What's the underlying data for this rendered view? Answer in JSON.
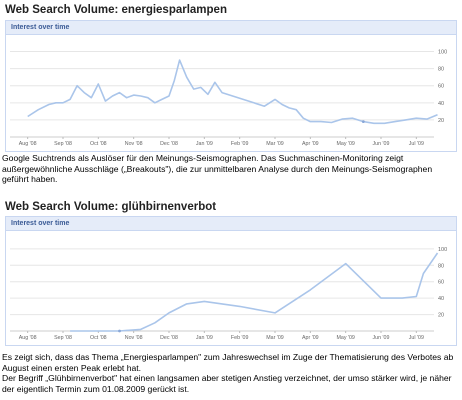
{
  "charts_text": [
    {
      "title": "Web Search Volume: energiesparlampen",
      "panel_label": "Interest over time"
    },
    {
      "title": "Web Search Volume: glühbirnenverbot",
      "panel_label": "Interest over time"
    }
  ],
  "caption1": "Google Suchtrends als Auslöser für den Meinungs-Seismographen. Das Suchmaschinen-Monitoring zeigt außergewöhnliche Ausschläge („Breakouts\"), die zur unmittelbaren Analyse durch den Meinungs-Seismographen geführt haben.",
  "caption2": "Es zeigt sich, dass das Thema „Energiesparlampen\" zum Jahreswechsel im Zuge der Thematisierung des Verbotes ab August einen ersten Peak erlebt hat.",
  "caption3": "Der Begriff „Glühbirnenverbot\" hat einen langsamen aber stetigen Anstieg verzeichnet, der umso stärker wird, je näher der eigentlich Termin zum 01.08.2009 gerückt ist.",
  "colors": {
    "line": "#aac5ea",
    "grid": "#e6e6e6",
    "marker": "#8aa8d8"
  },
  "chart_data": [
    {
      "type": "line",
      "title": "Web Search Volume: energiesparlampen",
      "xlabel": "",
      "ylabel": "",
      "x_ticks": [
        "Aug '08",
        "Sep '08",
        "Oct '08",
        "Nov '08",
        "Dec '08",
        "Jan '09",
        "Feb '09",
        "Mar '09",
        "Apr '09",
        "May '09",
        "Jun '09",
        "Jul '09"
      ],
      "y_ticks": [
        20,
        40,
        60,
        80,
        100
      ],
      "ylim": [
        0,
        110
      ],
      "grid": true,
      "series": [
        {
          "x": [
            0,
            0.3,
            0.6,
            0.8,
            1.0,
            1.2,
            1.4,
            1.6,
            1.8,
            2.0,
            2.2,
            2.4,
            2.6,
            2.8,
            3.0,
            3.2,
            3.4,
            3.6,
            3.8,
            4.0,
            4.15,
            4.3,
            4.5,
            4.7,
            4.9,
            5.1,
            5.3,
            5.5,
            5.8,
            6.1,
            6.4,
            6.7,
            7.0,
            7.2,
            7.4,
            7.6,
            7.8,
            8.0,
            8.3,
            8.6,
            8.9,
            9.2,
            9.5,
            9.8,
            10.1,
            10.4,
            10.7,
            11.0,
            11.3,
            11.6
          ],
          "values": [
            24,
            32,
            38,
            40,
            40,
            44,
            60,
            52,
            46,
            62,
            42,
            48,
            52,
            46,
            49,
            48,
            46,
            40,
            44,
            48,
            66,
            90,
            70,
            56,
            58,
            50,
            64,
            52,
            48,
            44,
            40,
            36,
            44,
            38,
            34,
            32,
            22,
            18,
            18,
            17,
            21,
            22,
            18,
            16,
            16,
            18,
            20,
            22,
            21,
            26
          ]
        }
      ]
    },
    {
      "type": "line",
      "title": "Web Search Volume: glühbirnenverbot",
      "xlabel": "",
      "ylabel": "",
      "x_ticks": [
        "Aug '08",
        "Sep '08",
        "Oct '08",
        "Nov '08",
        "Dec '08",
        "Jan '09",
        "Feb '09",
        "Mar '09",
        "Apr '09",
        "May '09",
        "Jun '09",
        "Jul '09"
      ],
      "y_ticks": [
        20,
        40,
        60,
        80,
        100
      ],
      "ylim": [
        0,
        112
      ],
      "grid": true,
      "series": [
        {
          "x": [
            1.2,
            2.0,
            2.6,
            3.2,
            3.6,
            4.0,
            4.5,
            5.0,
            6.0,
            7.0,
            8.0,
            9.0,
            10.0,
            10.6,
            11.0,
            11.2,
            11.6
          ],
          "values": [
            0,
            0,
            0,
            2,
            10,
            22,
            33,
            36,
            30,
            22,
            50,
            82,
            40,
            40,
            42,
            70,
            95
          ]
        }
      ]
    }
  ]
}
